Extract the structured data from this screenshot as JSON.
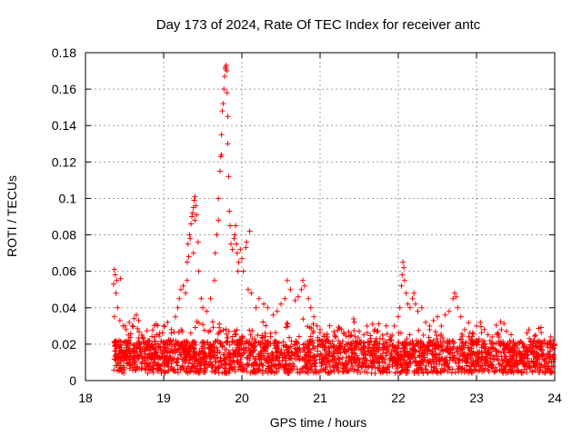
{
  "chart_data": {
    "type": "scatter",
    "title": "Day 173 of 2024, Rate Of TEC Index for receiver antc",
    "xlabel": "GPS time / hours",
    "ylabel": "ROTI / TECUs",
    "xlim": [
      18,
      24
    ],
    "ylim": [
      0,
      0.18
    ],
    "xticks": [
      18,
      19,
      20,
      21,
      22,
      23,
      24
    ],
    "xtick_labels": [
      "18",
      "19",
      "20",
      "21",
      "22",
      "23",
      "24"
    ],
    "yticks": [
      0,
      0.02,
      0.04,
      0.06,
      0.08,
      0.1,
      0.12,
      0.14,
      0.16,
      0.18
    ],
    "ytick_labels": [
      "0",
      "0.02",
      "0.04",
      "0.06",
      "0.08",
      "0.1",
      "0.12",
      "0.14",
      "0.16",
      "0.18"
    ],
    "grid": true,
    "marker": "+",
    "color": "#ff0000",
    "series": [
      {
        "name": "ROTI",
        "points": [
          [
            18.37,
            0.061
          ],
          [
            18.38,
            0.058
          ],
          [
            18.4,
            0.055
          ],
          [
            18.36,
            0.053
          ],
          [
            18.45,
            0.056
          ],
          [
            18.39,
            0.048
          ],
          [
            18.41,
            0.04
          ],
          [
            18.37,
            0.035
          ],
          [
            18.44,
            0.033
          ],
          [
            18.48,
            0.03
          ],
          [
            18.52,
            0.028
          ],
          [
            18.56,
            0.032
          ],
          [
            18.6,
            0.03
          ],
          [
            18.62,
            0.034
          ],
          [
            18.65,
            0.036
          ],
          [
            18.68,
            0.033
          ],
          [
            18.72,
            0.025
          ],
          [
            18.8,
            0.022
          ],
          [
            18.88,
            0.024
          ],
          [
            18.95,
            0.026
          ],
          [
            19.0,
            0.03
          ],
          [
            19.05,
            0.032
          ],
          [
            19.1,
            0.028
          ],
          [
            19.15,
            0.035
          ],
          [
            19.18,
            0.04
          ],
          [
            19.2,
            0.045
          ],
          [
            19.22,
            0.05
          ],
          [
            19.25,
            0.052
          ],
          [
            19.28,
            0.048
          ],
          [
            19.3,
            0.055
          ],
          [
            19.3,
            0.065
          ],
          [
            19.32,
            0.068
          ],
          [
            19.31,
            0.075
          ],
          [
            19.33,
            0.08
          ],
          [
            19.34,
            0.078
          ],
          [
            19.35,
            0.086
          ],
          [
            19.36,
            0.09
          ],
          [
            19.37,
            0.092
          ],
          [
            19.38,
            0.095
          ],
          [
            19.39,
            0.099
          ],
          [
            19.4,
            0.101
          ],
          [
            19.41,
            0.096
          ],
          [
            19.42,
            0.091
          ],
          [
            19.4,
            0.088
          ],
          [
            19.44,
            0.076
          ],
          [
            19.38,
            0.07
          ],
          [
            19.45,
            0.06
          ],
          [
            19.48,
            0.045
          ],
          [
            19.5,
            0.04
          ],
          [
            19.55,
            0.038
          ],
          [
            19.6,
            0.045
          ],
          [
            19.65,
            0.055
          ],
          [
            19.66,
            0.07
          ],
          [
            19.68,
            0.08
          ],
          [
            19.7,
            0.088
          ],
          [
            19.7,
            0.1
          ],
          [
            19.72,
            0.115
          ],
          [
            19.73,
            0.123
          ],
          [
            19.74,
            0.124
          ],
          [
            19.74,
            0.135
          ],
          [
            19.75,
            0.148
          ],
          [
            19.76,
            0.152
          ],
          [
            19.77,
            0.16
          ],
          [
            19.78,
            0.167
          ],
          [
            19.79,
            0.171
          ],
          [
            19.8,
            0.173
          ],
          [
            19.79,
            0.172
          ],
          [
            19.81,
            0.17
          ],
          [
            19.81,
            0.158
          ],
          [
            19.82,
            0.145
          ],
          [
            19.82,
            0.13
          ],
          [
            19.83,
            0.112
          ],
          [
            19.84,
            0.093
          ],
          [
            19.85,
            0.085
          ],
          [
            19.86,
            0.075
          ],
          [
            19.88,
            0.072
          ],
          [
            19.9,
            0.078
          ],
          [
            19.91,
            0.08
          ],
          [
            19.92,
            0.085
          ],
          [
            19.93,
            0.075
          ],
          [
            19.94,
            0.07
          ],
          [
            19.95,
            0.06
          ],
          [
            19.96,
            0.065
          ],
          [
            19.98,
            0.072
          ],
          [
            20.0,
            0.067
          ],
          [
            20.02,
            0.06
          ],
          [
            20.05,
            0.073
          ],
          [
            20.06,
            0.076
          ],
          [
            20.1,
            0.082
          ],
          [
            20.08,
            0.05
          ],
          [
            20.12,
            0.048
          ],
          [
            20.18,
            0.04
          ],
          [
            20.22,
            0.045
          ],
          [
            20.28,
            0.042
          ],
          [
            20.33,
            0.04
          ],
          [
            20.4,
            0.036
          ],
          [
            20.45,
            0.038
          ],
          [
            20.5,
            0.042
          ],
          [
            20.55,
            0.045
          ],
          [
            20.58,
            0.055
          ],
          [
            20.62,
            0.05
          ],
          [
            20.68,
            0.044
          ],
          [
            20.72,
            0.046
          ],
          [
            20.76,
            0.05
          ],
          [
            20.78,
            0.055
          ],
          [
            20.8,
            0.052
          ],
          [
            20.85,
            0.045
          ],
          [
            20.88,
            0.04
          ],
          [
            20.92,
            0.035
          ],
          [
            20.96,
            0.03
          ],
          [
            21.0,
            0.028
          ],
          [
            21.05,
            0.025
          ],
          [
            21.1,
            0.022
          ],
          [
            21.2,
            0.024
          ],
          [
            21.3,
            0.026
          ],
          [
            21.4,
            0.025
          ],
          [
            21.5,
            0.027
          ],
          [
            21.6,
            0.03
          ],
          [
            21.7,
            0.028
          ],
          [
            21.8,
            0.025
          ],
          [
            21.9,
            0.024
          ],
          [
            21.95,
            0.03
          ],
          [
            22.0,
            0.035
          ],
          [
            22.02,
            0.04
          ],
          [
            22.04,
            0.052
          ],
          [
            22.05,
            0.058
          ],
          [
            22.06,
            0.065
          ],
          [
            22.07,
            0.062
          ],
          [
            22.08,
            0.055
          ],
          [
            22.1,
            0.048
          ],
          [
            22.12,
            0.042
          ],
          [
            22.15,
            0.04
          ],
          [
            22.18,
            0.045
          ],
          [
            22.2,
            0.048
          ],
          [
            22.22,
            0.042
          ],
          [
            22.25,
            0.038
          ],
          [
            22.3,
            0.04
          ],
          [
            22.35,
            0.032
          ],
          [
            22.4,
            0.03
          ],
          [
            22.45,
            0.033
          ],
          [
            22.5,
            0.035
          ],
          [
            22.55,
            0.03
          ],
          [
            22.6,
            0.036
          ],
          [
            22.65,
            0.038
          ],
          [
            22.7,
            0.045
          ],
          [
            22.72,
            0.048
          ],
          [
            22.74,
            0.046
          ],
          [
            22.76,
            0.04
          ],
          [
            22.8,
            0.035
          ],
          [
            22.85,
            0.028
          ],
          [
            22.9,
            0.024
          ],
          [
            22.95,
            0.026
          ],
          [
            23.0,
            0.03
          ],
          [
            23.05,
            0.032
          ],
          [
            23.1,
            0.028
          ],
          [
            23.2,
            0.024
          ],
          [
            23.3,
            0.02
          ],
          [
            23.4,
            0.018
          ],
          [
            23.5,
            0.02
          ],
          [
            23.6,
            0.018
          ],
          [
            23.7,
            0.016
          ],
          [
            23.8,
            0.018
          ],
          [
            23.9,
            0.02
          ],
          [
            23.95,
            0.024
          ],
          [
            23.98,
            0.022
          ]
        ]
      }
    ]
  }
}
